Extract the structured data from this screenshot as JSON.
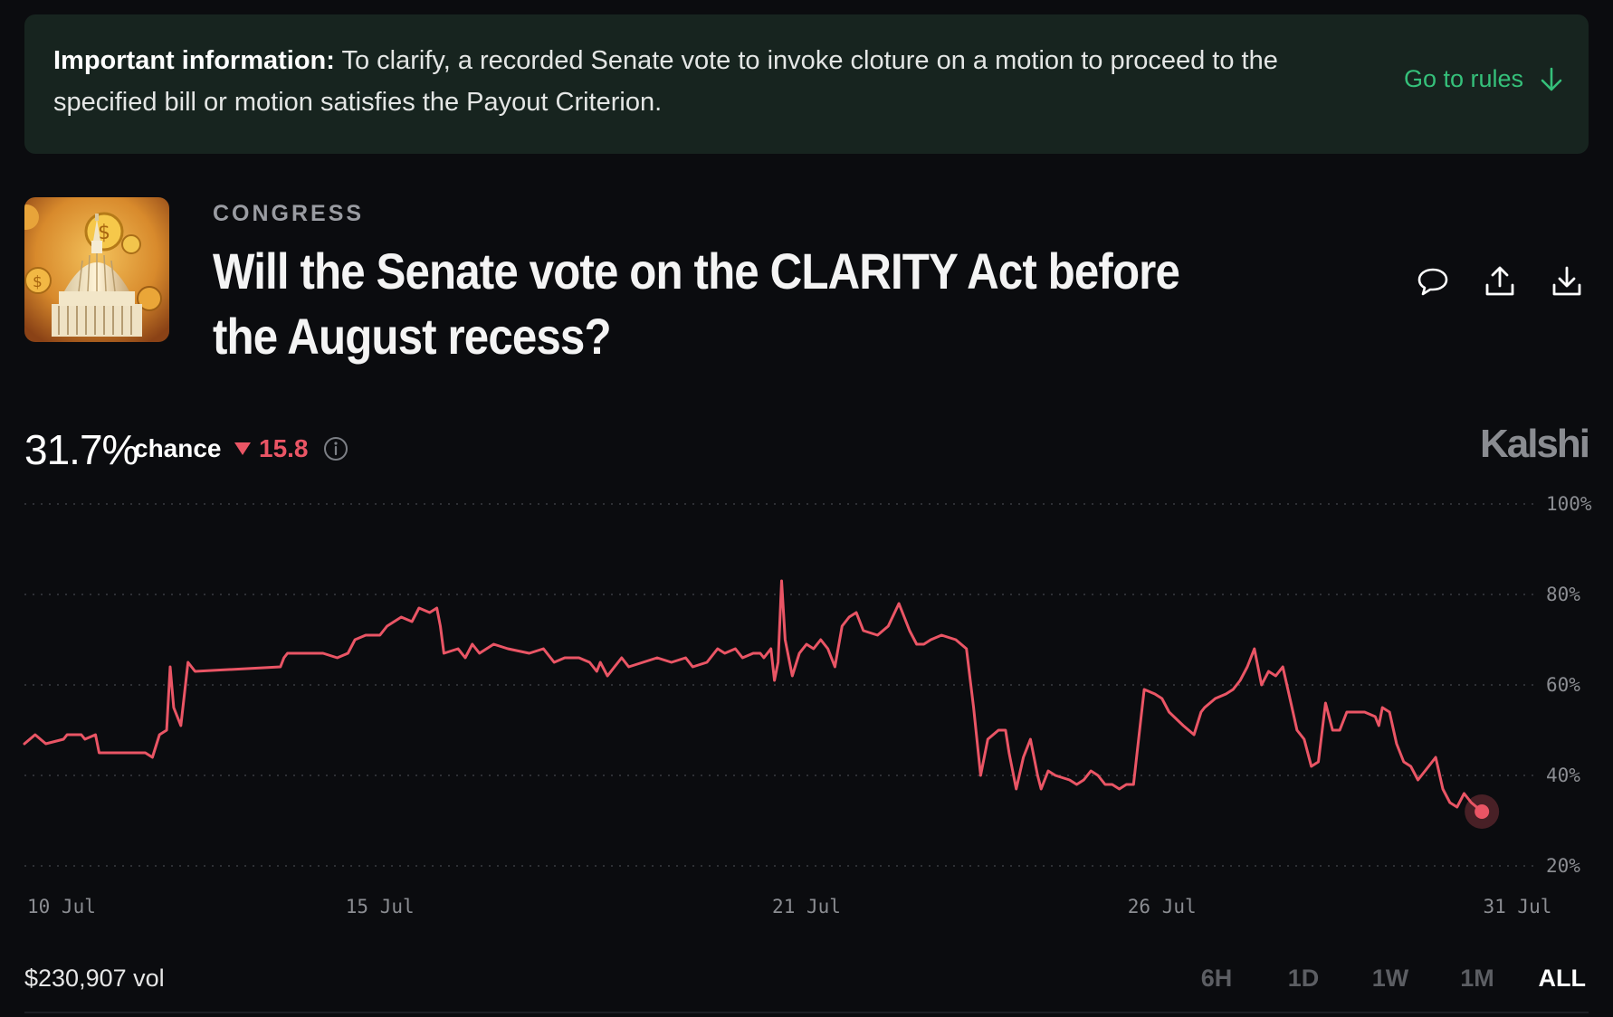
{
  "banner": {
    "label": "Important information:",
    "text": " To clarify, a recorded Senate vote to invoke cloture on a motion to proceed to the specified bill or motion satisfies the Payout Criterion.",
    "link_label": "Go to rules",
    "link_icon": "arrow-down-icon",
    "accent": "#35c07a"
  },
  "header": {
    "category": "CONGRESS",
    "title": "Will the Senate vote on the CLARITY Act before the August recess?",
    "actions": [
      {
        "icon": "comment-icon"
      },
      {
        "icon": "share-icon"
      },
      {
        "icon": "download-icon"
      }
    ]
  },
  "stats": {
    "probability": "31.7%",
    "chance_label": "chance",
    "delta": "15.8",
    "delta_direction": "down",
    "delta_color": "#ea5565",
    "brand": "Kalshi"
  },
  "chart_data": {
    "type": "line",
    "ylim": [
      20,
      100
    ],
    "y_ticks": [
      "100%",
      "80%",
      "60%",
      "40%",
      "20%"
    ],
    "y_tick_values": [
      100,
      80,
      60,
      40,
      20
    ],
    "x_tick_labels": [
      "10 Jul",
      "15 Jul",
      "21 Jul",
      "26 Jul",
      "31 Jul"
    ],
    "x_tick_days": [
      0,
      5,
      11,
      16,
      21
    ],
    "xlim_days": [
      0,
      21.3
    ],
    "grid": true,
    "line_color": "#ea5565",
    "series": [
      {
        "values_by_day": [
          [
            0,
            47
          ],
          [
            0.15,
            49
          ],
          [
            0.3,
            47
          ],
          [
            0.55,
            48
          ],
          [
            0.6,
            49
          ],
          [
            0.8,
            49
          ],
          [
            0.85,
            48
          ],
          [
            1.0,
            49
          ],
          [
            1.05,
            45
          ],
          [
            1.7,
            45
          ],
          [
            1.8,
            44
          ],
          [
            1.9,
            49
          ],
          [
            2.0,
            50
          ],
          [
            2.05,
            64
          ],
          [
            2.1,
            55
          ],
          [
            2.2,
            51
          ],
          [
            2.3,
            65
          ],
          [
            2.4,
            63
          ],
          [
            3.6,
            64
          ],
          [
            3.65,
            66
          ],
          [
            3.7,
            67
          ],
          [
            4.2,
            67
          ],
          [
            4.4,
            66
          ],
          [
            4.55,
            67
          ],
          [
            4.65,
            70
          ],
          [
            4.8,
            71
          ],
          [
            5.0,
            71
          ],
          [
            5.1,
            73
          ],
          [
            5.3,
            75
          ],
          [
            5.45,
            74
          ],
          [
            5.55,
            77
          ],
          [
            5.7,
            76
          ],
          [
            5.8,
            77
          ],
          [
            5.85,
            73
          ],
          [
            5.9,
            67
          ],
          [
            6.1,
            68
          ],
          [
            6.2,
            66
          ],
          [
            6.3,
            69
          ],
          [
            6.4,
            67
          ],
          [
            6.6,
            69
          ],
          [
            6.8,
            68
          ],
          [
            7.1,
            67
          ],
          [
            7.3,
            68
          ],
          [
            7.45,
            65
          ],
          [
            7.6,
            66
          ],
          [
            7.8,
            66
          ],
          [
            7.95,
            65
          ],
          [
            8.05,
            63
          ],
          [
            8.1,
            65
          ],
          [
            8.2,
            62
          ],
          [
            8.3,
            64
          ],
          [
            8.4,
            66
          ],
          [
            8.5,
            64
          ],
          [
            8.7,
            65
          ],
          [
            8.9,
            66
          ],
          [
            9.1,
            65
          ],
          [
            9.3,
            66
          ],
          [
            9.4,
            64
          ],
          [
            9.6,
            65
          ],
          [
            9.75,
            68
          ],
          [
            9.85,
            67
          ],
          [
            10.0,
            68
          ],
          [
            10.1,
            66
          ],
          [
            10.25,
            67
          ],
          [
            10.35,
            67
          ],
          [
            10.4,
            66
          ],
          [
            10.5,
            68
          ],
          [
            10.55,
            61
          ],
          [
            10.6,
            65
          ],
          [
            10.65,
            83
          ],
          [
            10.7,
            70
          ],
          [
            10.8,
            62
          ],
          [
            10.9,
            67
          ],
          [
            11.0,
            69
          ],
          [
            11.1,
            68
          ],
          [
            11.2,
            70
          ],
          [
            11.3,
            68
          ],
          [
            11.4,
            64
          ],
          [
            11.5,
            73
          ],
          [
            11.6,
            75
          ],
          [
            11.7,
            76
          ],
          [
            11.8,
            72
          ],
          [
            12.0,
            71
          ],
          [
            12.15,
            73
          ],
          [
            12.3,
            78
          ],
          [
            12.45,
            72
          ],
          [
            12.55,
            69
          ],
          [
            12.65,
            69
          ],
          [
            12.75,
            70
          ],
          [
            12.9,
            71
          ],
          [
            13.1,
            70
          ],
          [
            13.25,
            68
          ],
          [
            13.35,
            55
          ],
          [
            13.45,
            40
          ],
          [
            13.55,
            48
          ],
          [
            13.7,
            50
          ],
          [
            13.8,
            50
          ],
          [
            13.85,
            45
          ],
          [
            13.95,
            37
          ],
          [
            14.05,
            44
          ],
          [
            14.15,
            48
          ],
          [
            14.25,
            40
          ],
          [
            14.3,
            37
          ],
          [
            14.4,
            41
          ],
          [
            14.5,
            40
          ],
          [
            14.7,
            39
          ],
          [
            14.8,
            38
          ],
          [
            14.9,
            39
          ],
          [
            15.0,
            41
          ],
          [
            15.1,
            40
          ],
          [
            15.2,
            38
          ],
          [
            15.3,
            38
          ],
          [
            15.4,
            37
          ],
          [
            15.5,
            38
          ],
          [
            15.6,
            38
          ],
          [
            15.65,
            45
          ],
          [
            15.75,
            59
          ],
          [
            15.9,
            58
          ],
          [
            16.0,
            57
          ],
          [
            16.1,
            54
          ],
          [
            16.3,
            51
          ],
          [
            16.45,
            49
          ],
          [
            16.55,
            54
          ],
          [
            16.6,
            55
          ],
          [
            16.75,
            57
          ],
          [
            16.9,
            58
          ],
          [
            17.0,
            59
          ],
          [
            17.1,
            61
          ],
          [
            17.2,
            64
          ],
          [
            17.3,
            68
          ],
          [
            17.4,
            60
          ],
          [
            17.5,
            63
          ],
          [
            17.6,
            62
          ],
          [
            17.7,
            64
          ],
          [
            17.8,
            57
          ],
          [
            17.9,
            50
          ],
          [
            18.0,
            48
          ],
          [
            18.1,
            42
          ],
          [
            18.2,
            43
          ],
          [
            18.3,
            56
          ],
          [
            18.4,
            50
          ],
          [
            18.5,
            50
          ],
          [
            18.6,
            54
          ],
          [
            18.7,
            54
          ],
          [
            18.85,
            54
          ],
          [
            19.0,
            53
          ],
          [
            19.05,
            51
          ],
          [
            19.1,
            55
          ],
          [
            19.2,
            54
          ],
          [
            19.3,
            47
          ],
          [
            19.4,
            43
          ],
          [
            19.5,
            42
          ],
          [
            19.6,
            39
          ],
          [
            19.75,
            42
          ],
          [
            19.85,
            44
          ],
          [
            19.95,
            37
          ],
          [
            20.05,
            34
          ],
          [
            20.15,
            33
          ],
          [
            20.25,
            36
          ],
          [
            20.35,
            34
          ],
          [
            20.5,
            32
          ]
        ]
      }
    ]
  },
  "footer": {
    "volume": "$230,907 vol",
    "ranges": [
      "6H",
      "1D",
      "1W",
      "1M",
      "ALL"
    ],
    "active_range": "ALL"
  }
}
